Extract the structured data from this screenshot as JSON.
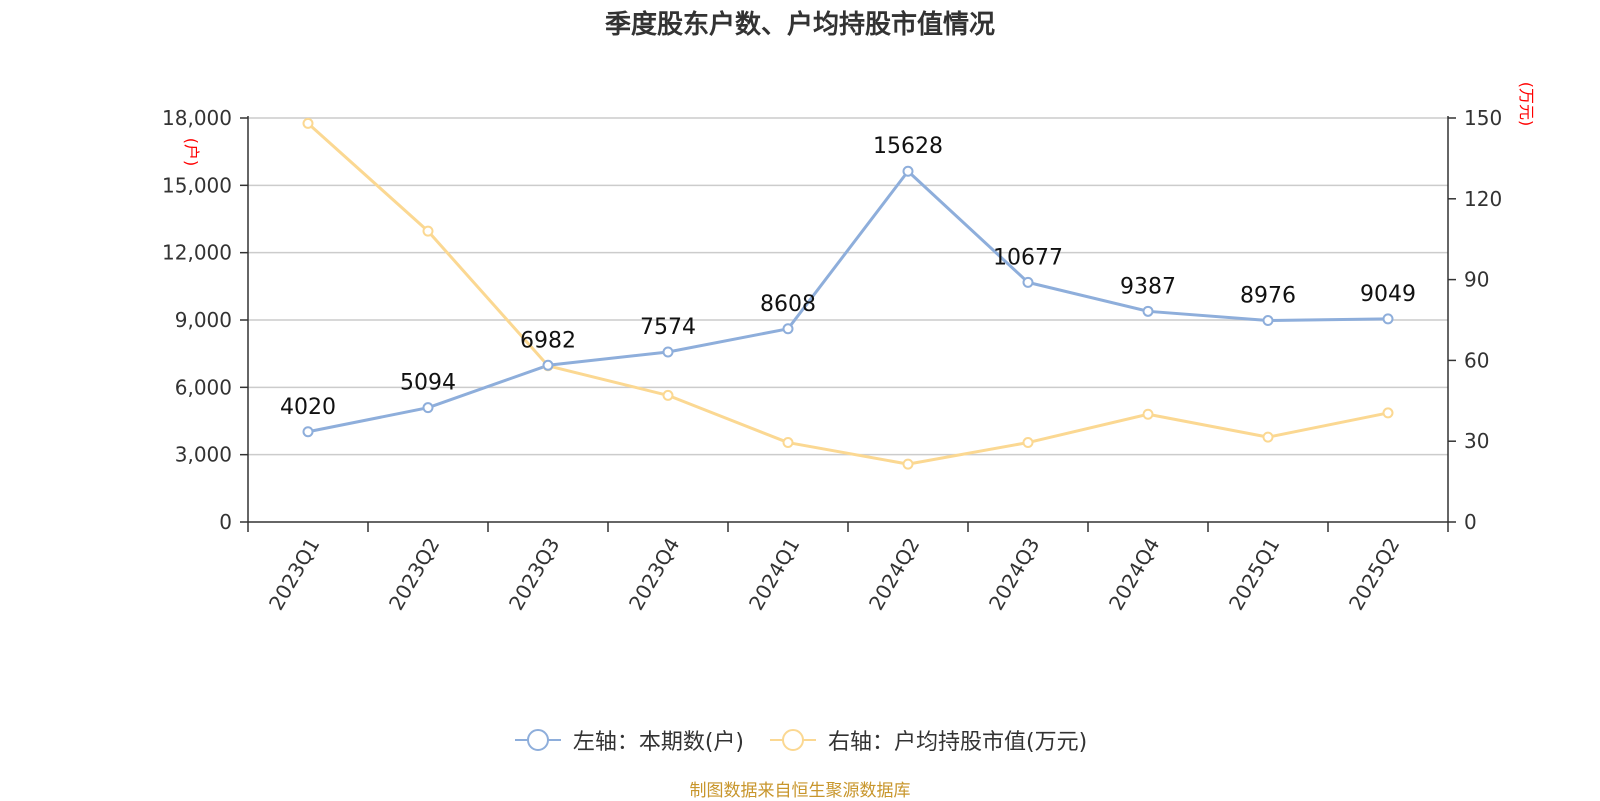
{
  "title": "季度股东户数、户均持股市值情况",
  "source": "制图数据来自恒生聚源数据库",
  "colors": {
    "series1": "#8eaedb",
    "series2": "#fbd892",
    "unit": "#ff0000",
    "grid": "#cccccc"
  },
  "chart_data": {
    "type": "line",
    "categories": [
      "2023Q1",
      "2023Q2",
      "2023Q3",
      "2023Q4",
      "2024Q1",
      "2024Q2",
      "2024Q3",
      "2024Q4",
      "2025Q1",
      "2025Q2"
    ],
    "left_axis": {
      "unit": "(户)",
      "ylim": [
        0,
        18000
      ],
      "ticks": [
        "0",
        "3,000",
        "6,000",
        "9,000",
        "12,000",
        "15,000",
        "18,000"
      ]
    },
    "right_axis": {
      "unit": "(万元)",
      "ylim": [
        0,
        150
      ],
      "ticks": [
        "0",
        "30",
        "60",
        "90",
        "120",
        "150"
      ]
    },
    "series": [
      {
        "name": "左轴：本期数(户)",
        "axis": "left",
        "values": [
          4020,
          5094,
          6982,
          7574,
          8608,
          15628,
          10677,
          9387,
          8976,
          9049
        ],
        "labels": [
          "4020",
          "5094",
          "6982",
          "7574",
          "8608",
          "15628",
          "10677",
          "9387",
          "8976",
          "9049"
        ]
      },
      {
        "name": "右轴：户均持股市值(万元)",
        "axis": "right",
        "values": [
          148,
          108,
          58,
          47,
          29.5,
          21.5,
          29.5,
          40,
          31.5,
          40.5
        ]
      }
    ],
    "grid": true,
    "legend": "bottom-center"
  }
}
